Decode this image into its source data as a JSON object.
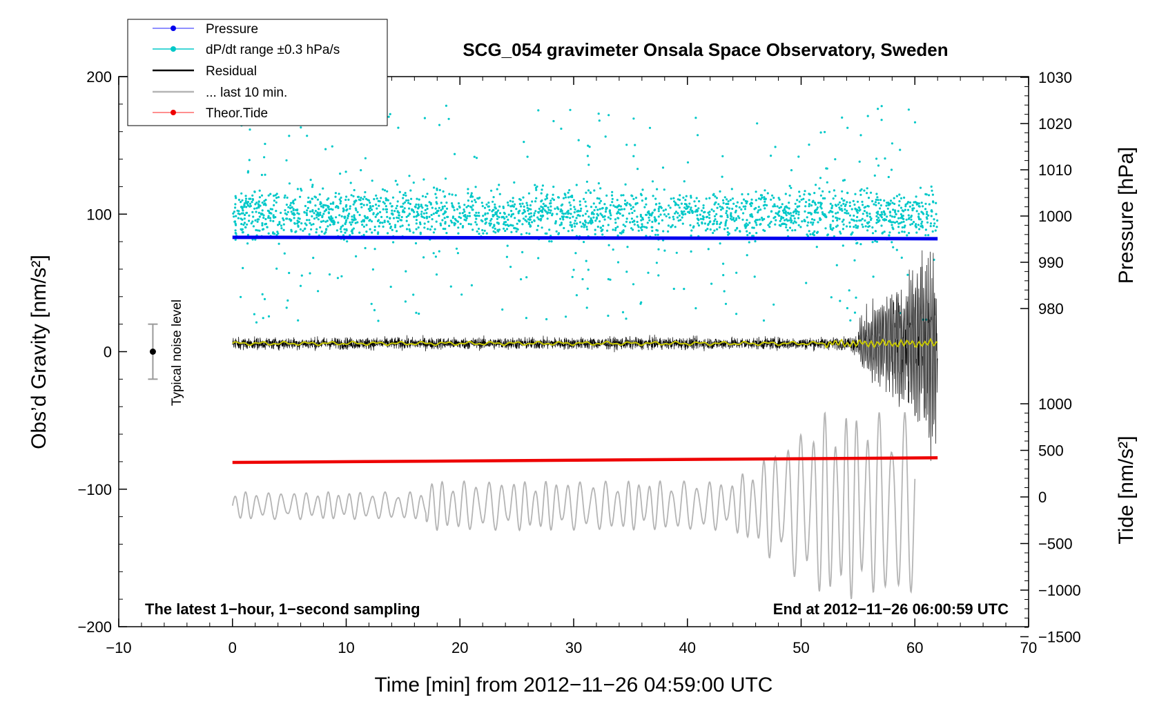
{
  "chart_data": {
    "type": "line",
    "title": "SCG_054 gravimeter Onsala Space Observatory, Sweden",
    "xlabel": "Time [min] from 2012−11−26 04:59:00 UTC",
    "ylabel_left": "Obs’d Gravity [nm/s²]",
    "ylabel_right_pressure": "Pressure [hPa]",
    "ylabel_right_tide": "Tide [nm/s²]",
    "xlim": [
      -10,
      70
    ],
    "ylim": [
      -200,
      200
    ],
    "pressure_axis_range": [
      980,
      1030
    ],
    "tide_axis_range": [
      -1500,
      1000
    ],
    "x_ticks": [
      "−10",
      "0",
      "10",
      "20",
      "30",
      "40",
      "50",
      "60",
      "70"
    ],
    "y_ticks": [
      "−200",
      "−100",
      "0",
      "100",
      "200"
    ],
    "pressure_ticks": [
      "980",
      "990",
      "1000",
      "1010",
      "1020",
      "1030"
    ],
    "tide_ticks": [
      "−1500",
      "−1000",
      "−500",
      "0",
      "500",
      "1000"
    ],
    "grid": false,
    "legend_position": "top-left",
    "legend": [
      {
        "label": "Pressure",
        "color": "#0000ee",
        "marker": "dot"
      },
      {
        "label": "dP/dt range ±0.3 hPa/s",
        "color": "#00c8c8",
        "marker": "dot"
      },
      {
        "label": "Residual",
        "color": "#000000",
        "marker": "line"
      },
      {
        "label": "... last 10 min.",
        "color": "#b4b4b4",
        "marker": "line"
      },
      {
        "label": "Theor.Tide",
        "color": "#ee0000",
        "marker": "dot"
      }
    ],
    "series": [
      {
        "name": "Pressure",
        "axis": "pressure",
        "x": [
          0,
          62
        ],
        "values": [
          995.4,
          995.1
        ]
      },
      {
        "name": "dP/dt range ±0.3 hPa/s",
        "axis": "gravity",
        "x_range": [
          0,
          62
        ],
        "center": 100,
        "spread": 80
      },
      {
        "name": "Residual",
        "axis": "gravity",
        "x_range": [
          0,
          62
        ],
        "baseline": 6,
        "amplitude_min": 25,
        "amplitude_max": 80
      },
      {
        "name": "... last 10 min.",
        "axis": "gravity",
        "x_range": [
          0,
          60
        ],
        "baseline": -112,
        "amplitude_min": 12,
        "amplitude_max": 68
      },
      {
        "name": "Theor.Tide",
        "axis": "tide",
        "x": [
          0,
          62
        ],
        "values": [
          370,
          420
        ]
      }
    ],
    "noise_bar": {
      "label": "Typical noise level",
      "x": -7,
      "center": 0,
      "half_range": 20
    },
    "annotations": {
      "left": "The latest 1−hour, 1−second sampling",
      "right": "End at 2012−11−26 06:00:59 UTC"
    }
  }
}
